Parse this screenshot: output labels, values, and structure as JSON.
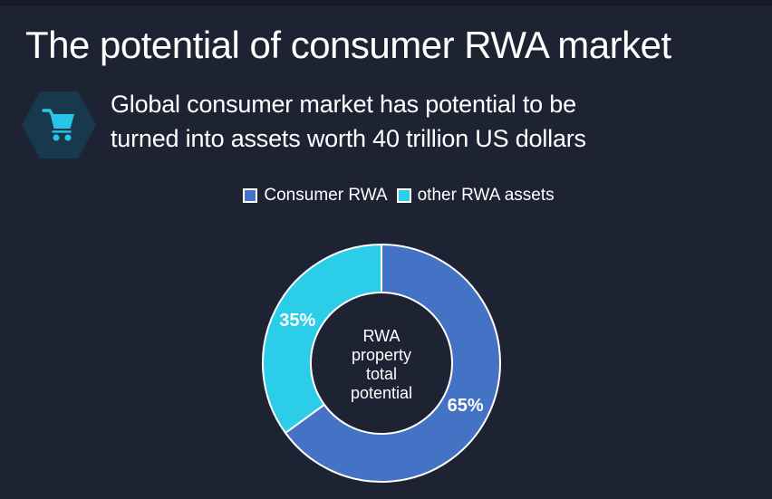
{
  "slide": {
    "title": "The potential of consumer RWA market",
    "subtitle_lines": [
      "Global consumer market has potential to be",
      "turned into assets worth 40 trillion US dollars"
    ]
  },
  "icon": {
    "name": "shopping-cart",
    "hexagon_fill": "#17394b",
    "cart_color": "#2ac4ea"
  },
  "colors": {
    "background": "#1e2334",
    "top_edge": "#171b27",
    "text": "#ffffff",
    "slice_stroke": "#ffffff"
  },
  "chart_data": {
    "type": "pie",
    "donut": true,
    "start_angle_deg": 0,
    "direction": "clockwise",
    "legend_position": "top",
    "center_label": "RWA property total potential",
    "value_label_suffix": "%",
    "segments": [
      {
        "label": "Consumer RWA",
        "value": 65,
        "color": "#4472c4"
      },
      {
        "label": "other RWA assets",
        "value": 35,
        "color": "#2bcde9"
      }
    ]
  }
}
